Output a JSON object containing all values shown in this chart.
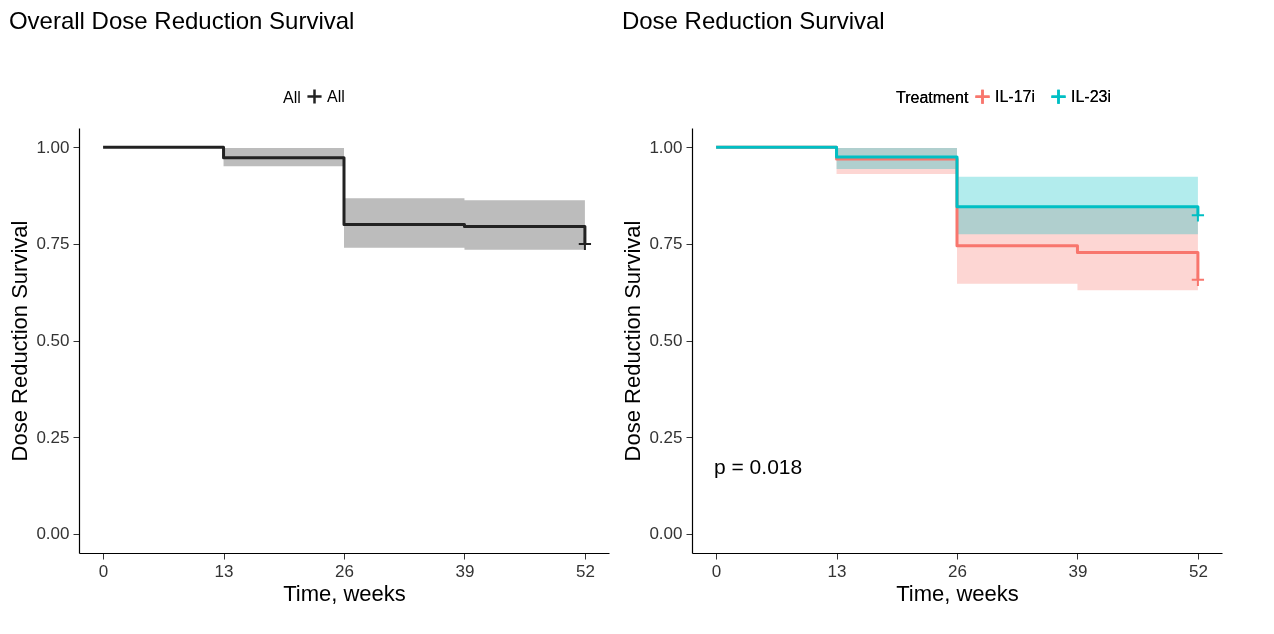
{
  "chart_data": [
    {
      "type": "step",
      "title": "Overall Dose Reduction Survival",
      "xlabel": "Time, weeks",
      "ylabel": "Dose Reduction Survival",
      "legend_title": "All",
      "legend": "top",
      "grid": false,
      "line_style": "solid",
      "xlim": [
        -2.6,
        54.6
      ],
      "ylim": [
        -0.05,
        1.05
      ],
      "xticks": [
        0,
        13,
        26,
        39,
        52
      ],
      "yticks": [
        {
          "value": 0,
          "label": "0.00"
        },
        {
          "value": 0.25,
          "label": "0.25"
        },
        {
          "value": 0.5,
          "label": "0.50"
        },
        {
          "value": 0.75,
          "label": "0.75"
        },
        {
          "value": 1,
          "label": "1.00"
        }
      ],
      "series": [
        {
          "name": "All",
          "color": "#222222",
          "x": [
            0,
            13,
            26,
            39,
            52
          ],
          "values": [
            1,
            0.973,
            0.8,
            0.795,
            0.75
          ],
          "lower": [
            1,
            0.951,
            0.74,
            0.735,
            0.735
          ],
          "upper": [
            1,
            0.998,
            0.868,
            0.863,
            0.863
          ]
        },
        {
          "type": "scatter",
          "marker": "cross",
          "color": "#222222",
          "x": [
            52
          ],
          "values": [
            0.75
          ]
        }
      ]
    },
    {
      "type": "step",
      "title": "Dose Reduction Survival",
      "xlabel": "Time, weeks",
      "ylabel": "Dose Reduction Survival",
      "legend_title": "Treatment",
      "legend": "top",
      "grid": false,
      "line_style": "solid",
      "annotations": [
        "p = 0.018"
      ],
      "xlim": [
        -2.6,
        54.6
      ],
      "ylim": [
        -0.05,
        1.05
      ],
      "xticks": [
        0,
        13,
        26,
        39,
        52
      ],
      "yticks": [
        {
          "value": 0,
          "label": "0.00"
        },
        {
          "value": 0.25,
          "label": "0.25"
        },
        {
          "value": 0.5,
          "label": "0.50"
        },
        {
          "value": 0.75,
          "label": "0.75"
        },
        {
          "value": 1,
          "label": "1.00"
        }
      ],
      "series": [
        {
          "name": "IL-17i",
          "color": "#f8766d",
          "x": [
            0,
            13,
            26,
            39,
            52
          ],
          "values": [
            1,
            0.97,
            0.745,
            0.728,
            0.657
          ],
          "lower": [
            1,
            0.931,
            0.647,
            0.63,
            0.63
          ],
          "upper": [
            1,
            0.998,
            0.845,
            0.845,
            0.845
          ]
        },
        {
          "name": "IL-23i",
          "color": "#00bfc4",
          "x": [
            0,
            13,
            26,
            39,
            52
          ],
          "values": [
            1,
            0.975,
            0.846,
            0.846,
            0.824
          ],
          "lower": [
            1,
            0.944,
            0.775,
            0.775,
            0.775
          ],
          "upper": [
            1,
            0.998,
            0.924,
            0.924,
            0.924
          ]
        },
        {
          "type": "scatter",
          "marker": "cross",
          "color": "#f8766d",
          "x": [
            52
          ],
          "values": [
            0.657
          ]
        },
        {
          "type": "scatter",
          "marker": "cross",
          "color": "#00bfc4",
          "x": [
            52
          ],
          "values": [
            0.824
          ]
        }
      ]
    }
  ]
}
